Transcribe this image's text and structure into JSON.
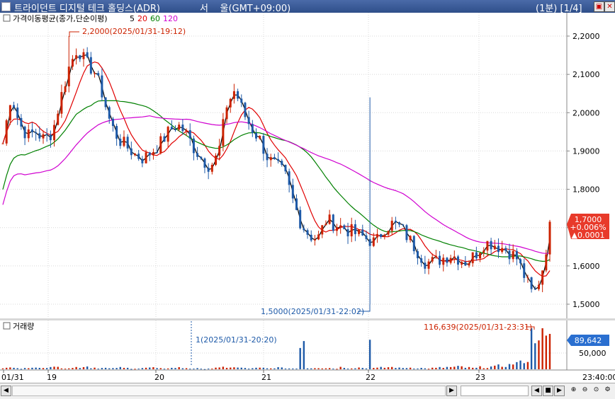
{
  "window": {
    "title": "트라이던트 디지털 테크 홀딩스(ADR)",
    "timezone": "서    울(GMT+09:00)",
    "period": "(1분) [1/4]"
  },
  "price_panel": {
    "legend_label": "가격이동평균(종가,단순이평)",
    "ma_periods": [
      "5",
      "20",
      "60",
      "120"
    ],
    "ma_colors": [
      "#000000",
      "#e00000",
      "#008000",
      "#d000d0"
    ],
    "y_ticks": [
      "2,2000",
      "2,1000",
      "2,0000",
      "1,9000",
      "1,8000",
      "1,7000",
      "1,6000",
      "1,5000"
    ],
    "high_annotation": "2,2000(2025/01/31-19:12)",
    "low_annotation": "1,5000(2025/01/31-22:02)",
    "current_price": "1,7000",
    "change_pct": "+0.006%",
    "change_abs": "▲0.0001",
    "up_color": "#cc2200",
    "down_color": "#1e5aa8"
  },
  "volume_panel": {
    "title": "거래량",
    "y_tick": "50,000",
    "max_annotation": "116,639(2025/01/31-23:31)",
    "min_annotation": "1(2025/01/31-20:20)",
    "current_volume": "89,642"
  },
  "x_axis": {
    "labels": [
      "01/31",
      "19",
      "20",
      "21",
      "22",
      "23",
      "23:40:00"
    ]
  },
  "chart_data": {
    "type": "candlestick",
    "title": "트라이던트 디지털 테크 홀딩스(ADR)",
    "interval": "1분",
    "ylim": [
      1.48,
      2.23
    ],
    "key_points": {
      "high": {
        "value": 2.2,
        "time": "2025/01/31-19:12"
      },
      "low": {
        "value": 1.5,
        "time": "2025/01/31-22:02"
      },
      "last": 1.7,
      "volume_max": {
        "value": 116639,
        "time": "2025/01/31-23:31"
      },
      "volume_min": {
        "value": 1,
        "time": "2025/01/31-20:20"
      },
      "last_volume": 89642
    },
    "close_path": [
      1.92,
      2.05,
      1.97,
      1.94,
      1.95,
      1.93,
      1.95,
      2.04,
      2.12,
      2.17,
      2.13,
      2.11,
      2.05,
      1.97,
      1.93,
      1.91,
      1.89,
      1.88,
      1.9,
      1.92,
      1.95,
      1.97,
      1.95,
      1.91,
      1.88,
      1.86,
      1.89,
      2.02,
      2.06,
      2.0,
      1.96,
      1.93,
      1.88,
      1.86,
      1.84,
      1.77,
      1.71,
      1.68,
      1.67,
      1.72,
      1.71,
      1.7,
      1.69,
      1.68,
      1.67,
      1.66,
      1.7,
      1.71,
      1.7,
      1.67,
      1.64,
      1.61,
      1.61,
      1.62,
      1.63,
      1.62,
      1.61,
      1.63,
      1.66,
      1.66,
      1.65,
      1.64,
      1.62,
      1.57,
      1.52,
      1.58,
      1.7
    ],
    "volume_series": [
      3,
      4,
      2,
      5,
      3,
      6,
      8,
      4,
      3,
      5,
      7,
      4,
      3,
      2,
      4,
      3,
      2,
      3,
      4,
      2,
      3,
      4,
      3,
      2,
      1,
      2,
      3,
      5,
      4,
      3,
      2,
      3,
      2,
      4,
      3,
      2,
      80,
      3,
      4,
      3,
      2,
      5,
      3,
      4,
      2,
      3,
      4,
      5,
      3,
      4,
      3,
      2,
      3,
      4,
      5,
      6,
      4,
      3,
      5,
      6,
      8,
      10,
      15,
      25,
      100,
      60,
      89
    ]
  }
}
